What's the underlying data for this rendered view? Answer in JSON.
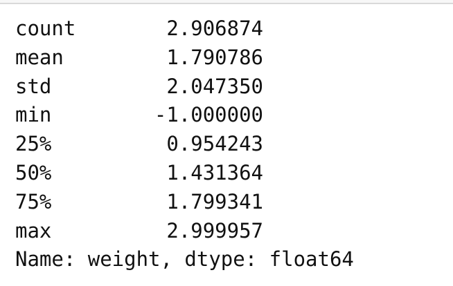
{
  "output": {
    "rows": [
      {
        "label": "count",
        "value": "2.906874"
      },
      {
        "label": "mean",
        "value": "1.790786"
      },
      {
        "label": "std",
        "value": "2.047350"
      },
      {
        "label": "min",
        "value": "-1.000000"
      },
      {
        "label": "25%",
        "value": "0.954243"
      },
      {
        "label": "50%",
        "value": "1.431364"
      },
      {
        "label": "75%",
        "value": "1.799341"
      },
      {
        "label": "max",
        "value": "2.999957"
      }
    ],
    "footer": "Name: weight, dtype: float64"
  }
}
